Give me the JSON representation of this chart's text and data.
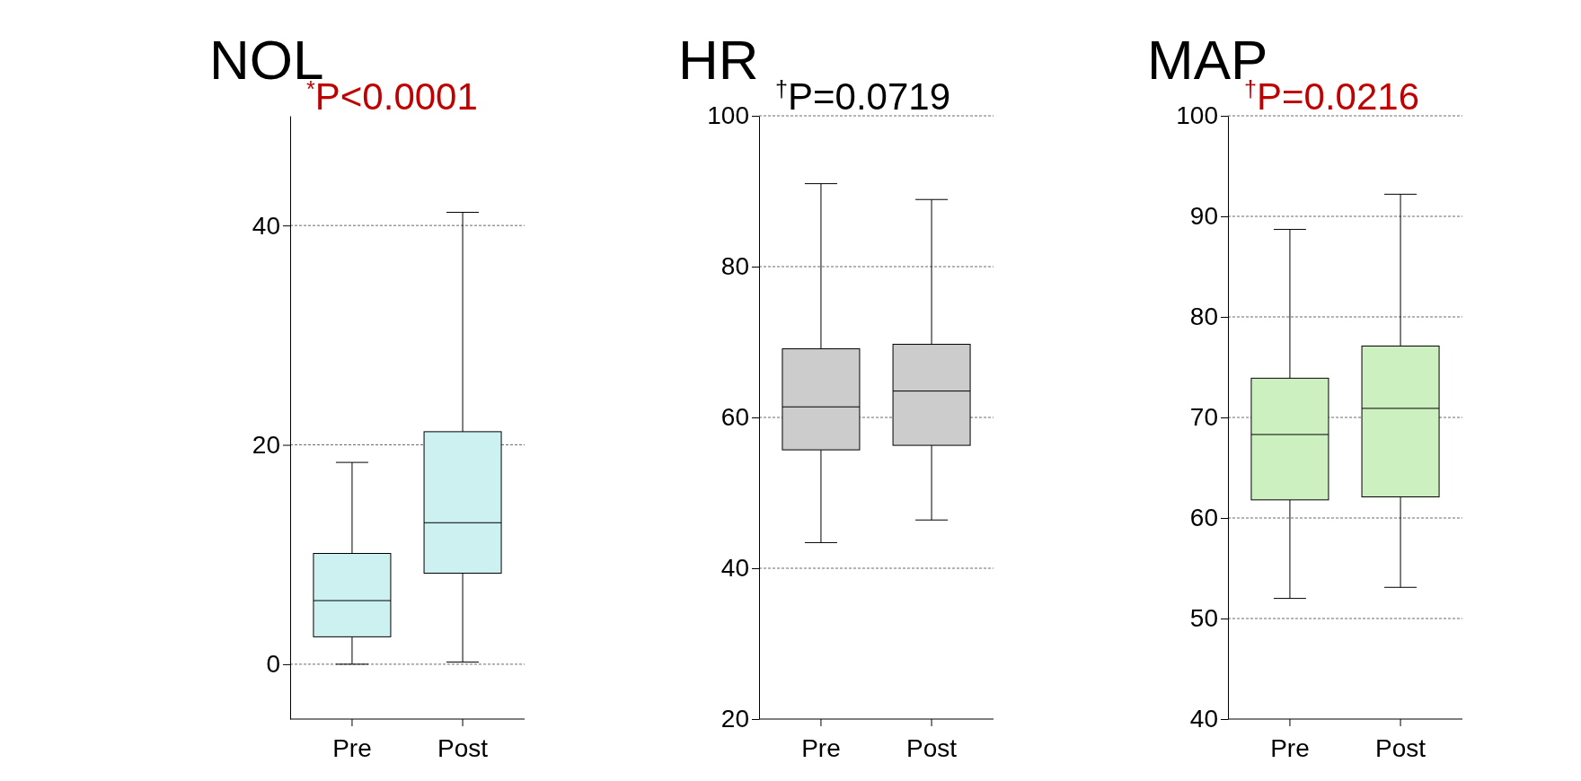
{
  "chart_data": [
    {
      "type": "box",
      "title": "NOL",
      "annotations": [
        "$^{*}$P<0.0001"
      ],
      "categories": [
        "Pre",
        "Post"
      ],
      "ylim": [
        -5,
        50
      ],
      "yticks": [
        0,
        20,
        40
      ],
      "grid": "y",
      "series": [
        {
          "color": "#cdf0f0",
          "boxes": [
            {
              "low": 0,
              "q1": 2.5,
              "median": 5.8,
              "q3": 10.1,
              "high": 18.4
            },
            {
              "low": 0.2,
              "q1": 8.3,
              "median": 12.9,
              "q3": 21.2,
              "high": 41.2
            }
          ]
        }
      ]
    },
    {
      "type": "box",
      "title": "HR",
      "annotations": [
        "$^{†}$P=0.0719"
      ],
      "categories": [
        "Pre",
        "Post"
      ],
      "ylim": [
        20,
        100
      ],
      "yticks": [
        20,
        40,
        60,
        80,
        100
      ],
      "grid": "y",
      "series": [
        {
          "color": "#cccccc",
          "boxes": [
            {
              "low": 43.4,
              "q1": 55.7,
              "median": 61.4,
              "q3": 69.1,
              "high": 91
            },
            {
              "low": 46.4,
              "q1": 56.3,
              "median": 63.5,
              "q3": 69.7,
              "high": 88.9
            }
          ]
        }
      ]
    },
    {
      "type": "box",
      "title": "MAP",
      "annotations": [
        "$^{†}$P=0.0216"
      ],
      "categories": [
        "Pre",
        "Post"
      ],
      "ylim": [
        40,
        100
      ],
      "yticks": [
        40,
        50,
        60,
        70,
        80,
        90,
        100
      ],
      "grid": "y",
      "series": [
        {
          "color": "#cdf0c0",
          "boxes": [
            {
              "low": 52,
              "q1": 61.8,
              "median": 68.3,
              "q3": 73.9,
              "high": 88.7
            },
            {
              "low": 53.1,
              "q1": 62.1,
              "median": 70.9,
              "q3": 77.1,
              "high": 92.2
            }
          ]
        }
      ]
    }
  ]
}
